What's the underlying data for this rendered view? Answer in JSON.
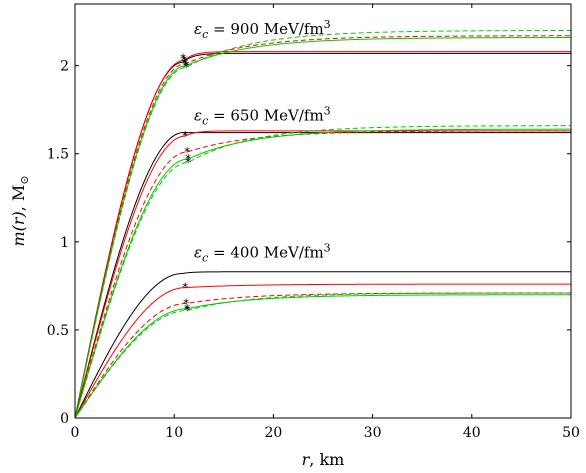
{
  "chart_data": {
    "type": "line",
    "xlabel_var": "r",
    "xlabel_unit": ", km",
    "ylabel_var": "m(r)",
    "ylabel_unit": ", M",
    "ylabel_sub": "⊙",
    "xlim": [
      0,
      50
    ],
    "ylim": [
      0,
      2.35
    ],
    "xticks": [
      0,
      10,
      20,
      30,
      40,
      50
    ],
    "yticks": [
      0,
      0.5,
      1,
      1.5,
      2
    ],
    "ytick_labels": [
      "0",
      "0.5",
      "1",
      "1.5",
      "2"
    ],
    "grid": false,
    "annotations": [
      {
        "eps": "ε",
        "sub": "c",
        "text": " = 900 MeV/fm",
        "sup": "3",
        "x": 12.0,
        "y": 2.18
      },
      {
        "eps": "ε",
        "sub": "c",
        "text": " = 650 MeV/fm",
        "sup": "3",
        "x": 12.0,
        "y": 1.69
      },
      {
        "eps": "ε",
        "sub": "c",
        "text": " = 400 MeV/fm",
        "sup": "3",
        "x": 12.0,
        "y": 0.91
      }
    ],
    "series": [
      {
        "group": "900",
        "color": "#000000",
        "dash": false,
        "M0": 2.02,
        "Minf": 2.07,
        "R": 10.9,
        "tail": 1.0
      },
      {
        "group": "900",
        "color": "#ff0000",
        "dash": false,
        "M0": 2.03,
        "Minf": 2.08,
        "R": 11.0,
        "tail": 1.0
      },
      {
        "group": "900",
        "color": "#ff0000",
        "dash": true,
        "M0": 2.01,
        "Minf": 2.17,
        "R": 11.1,
        "tail": 6.5
      },
      {
        "group": "900",
        "color": "#00cc00",
        "dash": false,
        "M0": 2.0,
        "Minf": 2.16,
        "R": 11.2,
        "tail": 6.5
      },
      {
        "group": "900",
        "color": "#00cc00",
        "dash": true,
        "M0": 1.99,
        "Minf": 2.2,
        "R": 11.2,
        "tail": 6.5
      },
      {
        "group": "650",
        "color": "#000000",
        "dash": false,
        "M0": 1.62,
        "Minf": 1.62,
        "R": 10.9,
        "tail": 1.0
      },
      {
        "group": "650",
        "color": "#ff0000",
        "dash": false,
        "M0": 1.6,
        "Minf": 1.63,
        "R": 11.1,
        "tail": 1.0
      },
      {
        "group": "650",
        "color": "#ff0000",
        "dash": true,
        "M0": 1.51,
        "Minf": 1.63,
        "R": 11.3,
        "tail": 6.5
      },
      {
        "group": "650",
        "color": "#00cc00",
        "dash": false,
        "M0": 1.47,
        "Minf": 1.64,
        "R": 11.4,
        "tail": 6.5
      },
      {
        "group": "650",
        "color": "#00cc00",
        "dash": true,
        "M0": 1.45,
        "Minf": 1.66,
        "R": 11.4,
        "tail": 6.5
      },
      {
        "group": "400",
        "color": "#000000",
        "dash": false,
        "M0": 0.82,
        "Minf": 0.83,
        "R": 10.8,
        "tail": 1.0
      },
      {
        "group": "400",
        "color": "#ff0000",
        "dash": false,
        "M0": 0.74,
        "Minf": 0.76,
        "R": 11.1,
        "tail": 6.0
      },
      {
        "group": "400",
        "color": "#ff0000",
        "dash": true,
        "M0": 0.65,
        "Minf": 0.71,
        "R": 11.2,
        "tail": 6.5
      },
      {
        "group": "400",
        "color": "#00cc00",
        "dash": false,
        "M0": 0.62,
        "Minf": 0.7,
        "R": 11.3,
        "tail": 6.5
      },
      {
        "group": "400",
        "color": "#00cc00",
        "dash": true,
        "M0": 0.61,
        "Minf": 0.71,
        "R": 11.3,
        "tail": 6.5
      }
    ],
    "stars": [
      {
        "x": 10.9,
        "y": 2.04
      },
      {
        "x": 11.0,
        "y": 2.03
      },
      {
        "x": 11.1,
        "y": 2.01
      },
      {
        "x": 11.2,
        "y": 2.0
      },
      {
        "x": 11.2,
        "y": 1.99
      },
      {
        "x": 11.1,
        "y": 1.6
      },
      {
        "x": 11.3,
        "y": 1.51
      },
      {
        "x": 11.4,
        "y": 1.47
      },
      {
        "x": 11.4,
        "y": 1.45
      },
      {
        "x": 11.1,
        "y": 0.74
      },
      {
        "x": 11.2,
        "y": 0.65
      },
      {
        "x": 11.3,
        "y": 0.62
      },
      {
        "x": 11.3,
        "y": 0.61
      }
    ]
  }
}
